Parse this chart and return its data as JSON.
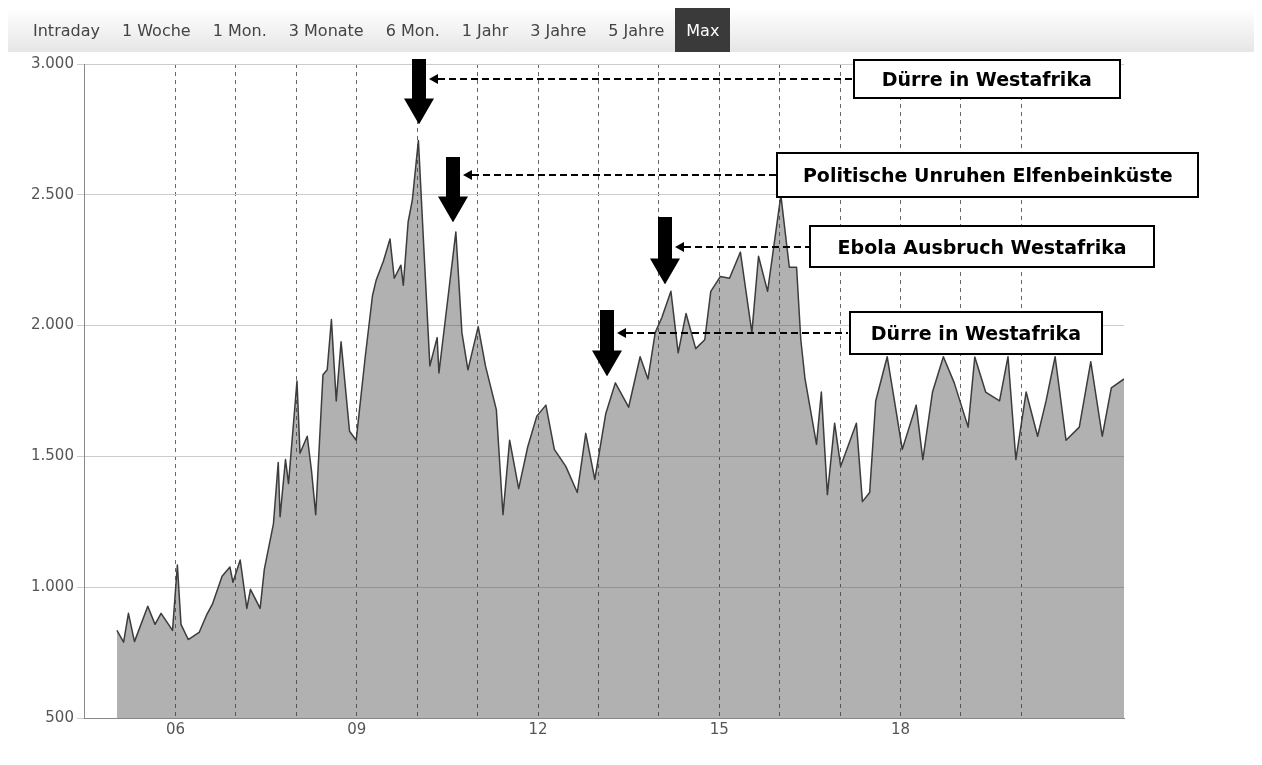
{
  "chart_data": {
    "type": "area",
    "x": [
      2005.03,
      2005.14,
      2005.22,
      2005.32,
      2005.54,
      2005.66,
      2005.76,
      2005.95,
      2006.03,
      2006.09,
      2006.21,
      2006.39,
      2006.51,
      2006.61,
      2006.77,
      2006.9,
      2006.95,
      2007.07,
      2007.18,
      2007.24,
      2007.4,
      2007.47,
      2007.62,
      2007.7,
      2007.73,
      2007.82,
      2007.87,
      2008.01,
      2008.06,
      2008.18,
      2008.25,
      2008.32,
      2008.44,
      2008.51,
      2008.58,
      2008.66,
      2008.74,
      2008.88,
      2008.99,
      2009.14,
      2009.26,
      2009.32,
      2009.44,
      2009.55,
      2009.62,
      2009.73,
      2009.77,
      2009.85,
      2009.92,
      2010.02,
      2010.11,
      2010.21,
      2010.33,
      2010.36,
      2010.47,
      2010.64,
      2010.74,
      2010.84,
      2011.01,
      2011.13,
      2011.31,
      2011.42,
      2011.53,
      2011.68,
      2011.83,
      2011.98,
      2012.13,
      2012.27,
      2012.46,
      2012.65,
      2012.79,
      2012.94,
      2013.12,
      2013.28,
      2013.5,
      2013.69,
      2013.82,
      2013.94,
      2014.05,
      2014.2,
      2014.32,
      2014.45,
      2014.61,
      2014.76,
      2014.86,
      2015.02,
      2015.17,
      2015.35,
      2015.54,
      2015.65,
      2015.8,
      2016.02,
      2016.16,
      2016.28,
      2016.35,
      2016.42,
      2016.61,
      2016.69,
      2016.79,
      2016.91,
      2017.01,
      2017.27,
      2017.37,
      2017.49,
      2017.59,
      2017.78,
      2017.9,
      2018.03,
      2018.26,
      2018.37,
      2018.53,
      2018.71,
      2018.89,
      2019.12,
      2019.23,
      2019.41,
      2019.64,
      2019.78,
      2019.91,
      2020.08,
      2020.27,
      2020.41,
      2020.56,
      2020.74,
      2020.96,
      2021.15,
      2021.34,
      2021.49,
      2021.7
    ],
    "series": [
      {
        "color": "#3c3c3c",
        "values": [
          835,
          790,
          900,
          792,
          927,
          858,
          900,
          835,
          1085,
          858,
          800,
          827,
          892,
          935,
          1042,
          1077,
          1019,
          1104,
          919,
          992,
          919,
          1069,
          1242,
          1477,
          1269,
          1488,
          1396,
          1788,
          1512,
          1577,
          1446,
          1277,
          1812,
          1831,
          2023,
          1712,
          1938,
          1596,
          1562,
          1881,
          2115,
          2173,
          2246,
          2331,
          2181,
          2231,
          2154,
          2396,
          2481,
          2708,
          2296,
          1846,
          1954,
          1819,
          2031,
          2358,
          1973,
          1831,
          1996,
          1846,
          1679,
          1277,
          1562,
          1377,
          1537,
          1654,
          1696,
          1527,
          1462,
          1362,
          1588,
          1412,
          1662,
          1781,
          1688,
          1881,
          1796,
          1973,
          2031,
          2131,
          1896,
          2046,
          1912,
          1946,
          2131,
          2188,
          2181,
          2281,
          1973,
          2265,
          2131,
          2498,
          2223,
          2223,
          1946,
          1796,
          1546,
          1746,
          1354,
          1627,
          1462,
          1627,
          1327,
          1362,
          1712,
          1881,
          1712,
          1527,
          1696,
          1488,
          1746,
          1881,
          1781,
          1612,
          1880,
          1746,
          1712,
          1881,
          1488,
          1746,
          1577,
          1712,
          1881,
          1562,
          1612,
          1862,
          1577,
          1762,
          1796
        ]
      }
    ],
    "xlim": [
      2004.5,
      2021.7
    ],
    "xticks": [
      {
        "value": 2006,
        "label": "06"
      },
      {
        "value": 2007,
        "label": null
      },
      {
        "value": 2008,
        "label": null
      },
      {
        "value": 2009,
        "label": "09"
      },
      {
        "value": 2010,
        "label": null
      },
      {
        "value": 2011,
        "label": null
      },
      {
        "value": 2012,
        "label": "12"
      },
      {
        "value": 2013,
        "label": null
      },
      {
        "value": 2014,
        "label": null
      },
      {
        "value": 2015,
        "label": "15"
      },
      {
        "value": 2016,
        "label": null
      },
      {
        "value": 2017,
        "label": null
      },
      {
        "value": 2018,
        "label": "18"
      },
      {
        "value": 2019,
        "label": null
      },
      {
        "value": 2020,
        "label": null
      }
    ],
    "ylim": [
      500,
      3000
    ],
    "yticks": [
      {
        "value": 500,
        "label": "500"
      },
      {
        "value": 1000,
        "label": "1.000"
      },
      {
        "value": 1500,
        "label": "1.500"
      },
      {
        "value": 2000,
        "label": "2.000"
      },
      {
        "value": 2500,
        "label": "2.500"
      },
      {
        "value": 3000,
        "label": "3.000"
      }
    ],
    "grid": true,
    "annotations": [
      "Intraday",
      "1 Woche",
      "1 Mon.",
      "3 Monate",
      "6 Mon.",
      "1 Jahr",
      "3 Jahre",
      "5 Jahre",
      "Max",
      "Dürre in Westafrika",
      "Politische Unruhen Elfenbeinküste",
      "Ebola Ausbruch Westafrika",
      "Dürre in Westafrika"
    ]
  }
}
